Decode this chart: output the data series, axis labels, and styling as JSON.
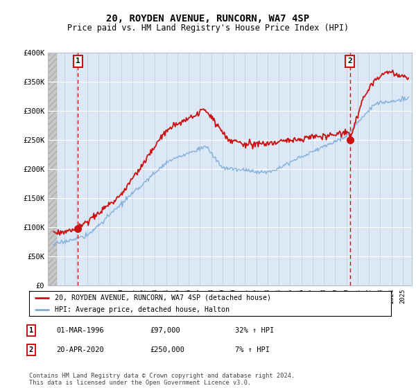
{
  "title": "20, ROYDEN AVENUE, RUNCORN, WA7 4SP",
  "subtitle": "Price paid vs. HM Land Registry's House Price Index (HPI)",
  "legend_line1": "20, ROYDEN AVENUE, RUNCORN, WA7 4SP (detached house)",
  "legend_line2": "HPI: Average price, detached house, Halton",
  "annotation1_date": "01-MAR-1996",
  "annotation1_price": "£97,000",
  "annotation1_hpi": "32% ↑ HPI",
  "annotation2_date": "20-APR-2020",
  "annotation2_price": "£250,000",
  "annotation2_hpi": "7% ↑ HPI",
  "footer": "Contains HM Land Registry data © Crown copyright and database right 2024.\nThis data is licensed under the Open Government Licence v3.0.",
  "hpi_color": "#7aabdb",
  "price_color": "#cc1111",
  "dashed_line_color": "#cc1111",
  "marker_color": "#cc1111",
  "background_plot": "#dce8f5",
  "ylim": [
    0,
    400000
  ],
  "ytick_vals": [
    0,
    50000,
    100000,
    150000,
    200000,
    250000,
    300000,
    350000,
    400000
  ],
  "ytick_labels": [
    "£0",
    "£50K",
    "£100K",
    "£150K",
    "£200K",
    "£250K",
    "£300K",
    "£350K",
    "£400K"
  ],
  "sale1_x": 1996.17,
  "sale1_y": 97000,
  "sale2_x": 2020.3,
  "sale2_y": 250000,
  "xmin": 1993.5,
  "xmax": 2025.8,
  "hatch_end": 1994.3
}
